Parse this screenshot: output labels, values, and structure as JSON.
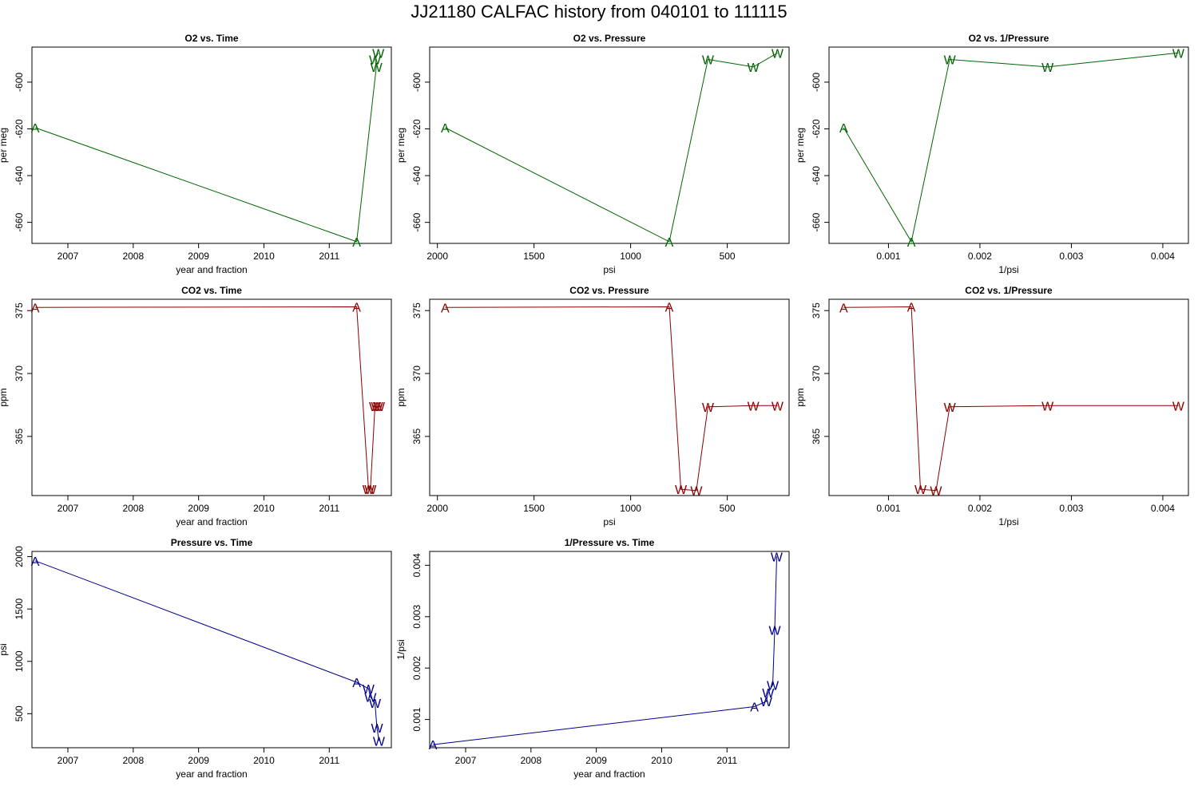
{
  "figure": {
    "title": "JJ21180   CALFAC history from  040101  to  111115"
  },
  "colors": {
    "o2": "#006400",
    "co2": "#8b0000",
    "pressure": "#00008b"
  },
  "chart_data": [
    {
      "type": "line",
      "title": "O2 vs. Time",
      "xlabel": "year and fraction",
      "ylabel": "per meg",
      "color": "o2",
      "xlim": [
        2006.45,
        2011.95
      ],
      "ylim": [
        -669,
        -585
      ],
      "xticks": [
        2007,
        2008,
        2009,
        2010,
        2011
      ],
      "yticks": [
        -600,
        -620,
        -640,
        -660
      ],
      "xtick_labels": [
        "2007",
        "2008",
        "2009",
        "2010",
        "2011"
      ],
      "ytick_labels": [
        "-600",
        "-620",
        "-640",
        "-660"
      ],
      "points": [
        {
          "x": 2006.5,
          "y": -619.5,
          "label": "A"
        },
        {
          "x": 2011.42,
          "y": -668.3,
          "label": "A"
        },
        {
          "x": 2011.72,
          "y": -593.5,
          "label": "W"
        },
        {
          "x": 2011.7,
          "y": -590.3,
          "label": "W"
        },
        {
          "x": 2011.75,
          "y": -587.5,
          "label": "W"
        }
      ]
    },
    {
      "type": "line",
      "title": "O2 vs. Pressure",
      "xlabel": "psi",
      "ylabel": "per meg",
      "color": "o2",
      "xlim": [
        2040,
        180
      ],
      "ylim": [
        -669,
        -585
      ],
      "xticks": [
        2000,
        1500,
        1000,
        500
      ],
      "yticks": [
        -600,
        -620,
        -640,
        -660
      ],
      "xtick_labels": [
        "2000",
        "1500",
        "1000",
        "500"
      ],
      "ytick_labels": [
        "-600",
        "-620",
        "-640",
        "-660"
      ],
      "points": [
        {
          "x": 1960,
          "y": -619.5,
          "label": "A"
        },
        {
          "x": 800,
          "y": -668.3,
          "label": "A"
        },
        {
          "x": 600,
          "y": -590.3,
          "label": "W"
        },
        {
          "x": 365,
          "y": -593.5,
          "label": "W"
        },
        {
          "x": 240,
          "y": -587.5,
          "label": "W"
        }
      ]
    },
    {
      "type": "line",
      "title": "O2 vs. 1/Pressure",
      "xlabel": "1/psi",
      "ylabel": "per meg",
      "color": "o2",
      "xlim": [
        0.00035,
        0.00428
      ],
      "ylim": [
        -669,
        -585
      ],
      "xticks": [
        0.001,
        0.002,
        0.003,
        0.004
      ],
      "yticks": [
        -600,
        -620,
        -640,
        -660
      ],
      "xtick_labels": [
        "0.001",
        "0.002",
        "0.003",
        "0.004"
      ],
      "ytick_labels": [
        "-600",
        "-620",
        "-640",
        "-660"
      ],
      "points": [
        {
          "x": 0.00051,
          "y": -619.5,
          "label": "A"
        },
        {
          "x": 0.00125,
          "y": -668.3,
          "label": "A"
        },
        {
          "x": 0.00167,
          "y": -590.3,
          "label": "W"
        },
        {
          "x": 0.00274,
          "y": -593.5,
          "label": "W"
        },
        {
          "x": 0.00417,
          "y": -587.5,
          "label": "W"
        }
      ]
    },
    {
      "type": "line",
      "title": "CO2 vs. Time",
      "xlabel": "year and fraction",
      "ylabel": "ppm",
      "color": "co2",
      "xlim": [
        2006.45,
        2011.95
      ],
      "ylim": [
        360.3,
        375.9
      ],
      "xticks": [
        2007,
        2008,
        2009,
        2010,
        2011
      ],
      "yticks": [
        365,
        370,
        375
      ],
      "xtick_labels": [
        "2007",
        "2008",
        "2009",
        "2010",
        "2011"
      ],
      "ytick_labels": [
        "365",
        "370",
        "375"
      ],
      "points": [
        {
          "x": 2006.5,
          "y": 375.25,
          "label": "A"
        },
        {
          "x": 2011.42,
          "y": 375.3,
          "label": "A"
        },
        {
          "x": 2011.6,
          "y": 360.8,
          "label": "W"
        },
        {
          "x": 2011.63,
          "y": 360.8,
          "label": "W"
        },
        {
          "x": 2011.7,
          "y": 367.4,
          "label": "W"
        },
        {
          "x": 2011.73,
          "y": 367.4,
          "label": "W"
        },
        {
          "x": 2011.76,
          "y": 367.4,
          "label": "W"
        }
      ]
    },
    {
      "type": "line",
      "title": "CO2 vs. Pressure",
      "xlabel": "psi",
      "ylabel": "ppm",
      "color": "co2",
      "xlim": [
        2040,
        180
      ],
      "ylim": [
        360.3,
        375.9
      ],
      "xticks": [
        2000,
        1500,
        1000,
        500
      ],
      "yticks": [
        365,
        370,
        375
      ],
      "xtick_labels": [
        "2000",
        "1500",
        "1000",
        "500"
      ],
      "ytick_labels": [
        "365",
        "370",
        "375"
      ],
      "points": [
        {
          "x": 1960,
          "y": 375.25,
          "label": "A"
        },
        {
          "x": 800,
          "y": 375.3,
          "label": "A"
        },
        {
          "x": 740,
          "y": 360.8,
          "label": "W"
        },
        {
          "x": 660,
          "y": 360.7,
          "label": "W"
        },
        {
          "x": 600,
          "y": 367.35,
          "label": "W"
        },
        {
          "x": 365,
          "y": 367.45,
          "label": "W"
        },
        {
          "x": 240,
          "y": 367.45,
          "label": "W"
        }
      ]
    },
    {
      "type": "line",
      "title": "CO2 vs. 1/Pressure",
      "xlabel": "1/psi",
      "ylabel": "ppm",
      "color": "co2",
      "xlim": [
        0.00035,
        0.00428
      ],
      "ylim": [
        360.3,
        375.9
      ],
      "xticks": [
        0.001,
        0.002,
        0.003,
        0.004
      ],
      "yticks": [
        365,
        370,
        375
      ],
      "xtick_labels": [
        "0.001",
        "0.002",
        "0.003",
        "0.004"
      ],
      "ytick_labels": [
        "365",
        "370",
        "375"
      ],
      "points": [
        {
          "x": 0.00051,
          "y": 375.25,
          "label": "A"
        },
        {
          "x": 0.00125,
          "y": 375.3,
          "label": "A"
        },
        {
          "x": 0.00135,
          "y": 360.8,
          "label": "W"
        },
        {
          "x": 0.00152,
          "y": 360.7,
          "label": "W"
        },
        {
          "x": 0.00167,
          "y": 367.35,
          "label": "W"
        },
        {
          "x": 0.00274,
          "y": 367.45,
          "label": "W"
        },
        {
          "x": 0.00417,
          "y": 367.45,
          "label": "W"
        }
      ]
    },
    {
      "type": "line",
      "title": "Pressure vs. Time",
      "xlabel": "year and fraction",
      "ylabel": "psi",
      "color": "pressure",
      "xlim": [
        2006.45,
        2011.95
      ],
      "ylim": [
        175,
        2050
      ],
      "xticks": [
        2007,
        2008,
        2009,
        2010,
        2011
      ],
      "yticks": [
        500,
        1000,
        1500,
        2000
      ],
      "xtick_labels": [
        "2007",
        "2008",
        "2009",
        "2010",
        "2011"
      ],
      "ytick_labels": [
        "500",
        "1000",
        "1500",
        "2000"
      ],
      "points": [
        {
          "x": 2006.5,
          "y": 1960,
          "label": "A"
        },
        {
          "x": 2011.42,
          "y": 800,
          "label": "A"
        },
        {
          "x": 2011.6,
          "y": 740,
          "label": "W"
        },
        {
          "x": 2011.63,
          "y": 660,
          "label": "W"
        },
        {
          "x": 2011.7,
          "y": 600,
          "label": "W"
        },
        {
          "x": 2011.73,
          "y": 365,
          "label": "W"
        },
        {
          "x": 2011.76,
          "y": 240,
          "label": "W"
        }
      ]
    },
    {
      "type": "line",
      "title": "1/Pressure vs. Time",
      "xlabel": "year and fraction",
      "ylabel": "1/psi",
      "color": "pressure",
      "xlim": [
        2006.45,
        2011.95
      ],
      "ylim": [
        0.00045,
        0.00427
      ],
      "xticks": [
        2007,
        2008,
        2009,
        2010,
        2011
      ],
      "yticks": [
        0.001,
        0.002,
        0.003,
        0.004
      ],
      "xtick_labels": [
        "2007",
        "2008",
        "2009",
        "2010",
        "2011"
      ],
      "ytick_labels": [
        "0.001",
        "0.002",
        "0.003",
        "0.004"
      ],
      "points": [
        {
          "x": 2006.5,
          "y": 0.00051,
          "label": "A"
        },
        {
          "x": 2011.42,
          "y": 0.00125,
          "label": "A"
        },
        {
          "x": 2011.6,
          "y": 0.00135,
          "label": "W"
        },
        {
          "x": 2011.63,
          "y": 0.00152,
          "label": "W"
        },
        {
          "x": 2011.7,
          "y": 0.00167,
          "label": "W"
        },
        {
          "x": 2011.73,
          "y": 0.00274,
          "label": "W"
        },
        {
          "x": 2011.76,
          "y": 0.00417,
          "label": "W"
        }
      ]
    }
  ]
}
